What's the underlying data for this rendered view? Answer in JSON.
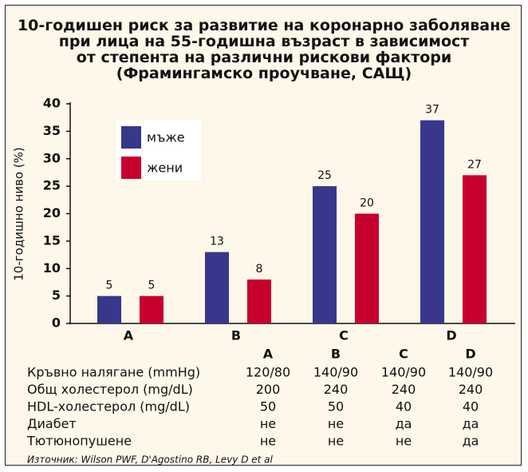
{
  "chart_data": {
    "type": "bar",
    "title": "10-годишен риск за развитие на коронарно заболяване\nпри лица на 55-годишна възраст в зависимост\nот степента на различни рискови фактори\n(Фрамингамско проучване, САЩ)",
    "y_label": "10-годишно ниво (%)",
    "categories": [
      "A",
      "B",
      "C",
      "D"
    ],
    "series": [
      {
        "name": "мъже",
        "color": "#37378c",
        "values": [
          5,
          13,
          25,
          37
        ]
      },
      {
        "name": "жени",
        "color": "#c8002d",
        "values": [
          5,
          8,
          20,
          27
        ]
      }
    ],
    "ylim": [
      0,
      40
    ],
    "yticks": [
      0,
      5,
      10,
      15,
      20,
      25,
      30,
      35,
      40
    ],
    "grid": false
  },
  "table": {
    "columns": [
      "A",
      "B",
      "C",
      "D"
    ],
    "rows": [
      [
        "Кръвно налягане (mmHg)",
        "120/80",
        "140/90",
        "140/90",
        "140/90"
      ],
      [
        "Общ холестерол (mg/dL)",
        "200",
        "240",
        "240",
        "240"
      ],
      [
        "HDL-холестерол (mg/dL)",
        "50",
        "50",
        "40",
        "40"
      ],
      [
        "Диабет",
        "не",
        "не",
        "да",
        "да"
      ],
      [
        "Тютюнопушене",
        "не",
        "не",
        "не",
        "да"
      ]
    ]
  },
  "source": "Източник: Wilson PWF, D'Agostino RB, Levy D et al"
}
